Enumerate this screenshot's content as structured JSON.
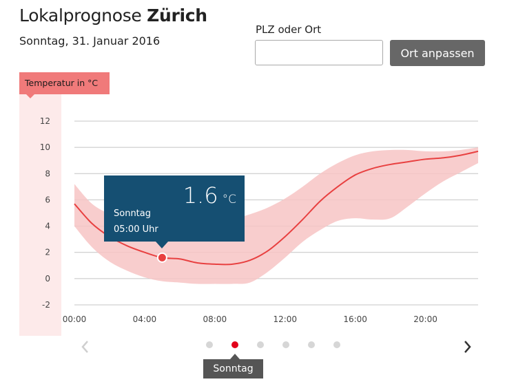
{
  "header": {
    "title_prefix": "Lokalprognose",
    "title_city": "Zürich",
    "date": "Sonntag, 31. Januar 2016"
  },
  "location": {
    "label": "PLZ oder Ort",
    "value": "",
    "button_label": "Ort anpassen"
  },
  "tooltip": {
    "value": "1.6",
    "unit": "°C",
    "day": "Sonntag",
    "time": "05:00 Uhr"
  },
  "pager": {
    "active_index": 1,
    "count": 6,
    "active_label": "Sonntag"
  },
  "colors": {
    "line": "#e84040",
    "band": "#f7c4c4",
    "tooltip": "#154f72",
    "active_dot": "#e2001a"
  },
  "chart_data": {
    "type": "line",
    "ylabel": "Temperatur in °C",
    "ylim": [
      -2,
      12
    ],
    "xlim": [
      0,
      23
    ],
    "y_ticks": [
      "12",
      "10",
      "8",
      "6",
      "4",
      "2",
      "0",
      "-2"
    ],
    "x_ticks": [
      "00:00",
      "04:00",
      "08:00",
      "12:00",
      "16:00",
      "20:00"
    ],
    "grid": true,
    "series": [
      {
        "type": "line",
        "x": [
          0,
          1,
          2,
          3,
          4,
          5,
          6,
          7,
          8,
          9,
          10,
          11,
          12,
          13,
          14,
          15,
          16,
          17,
          18,
          19,
          20,
          21,
          22,
          23
        ],
        "y": [
          5.7,
          4.2,
          3.2,
          2.5,
          2.0,
          1.6,
          1.5,
          1.2,
          1.1,
          1.1,
          1.4,
          2.1,
          3.2,
          4.5,
          5.9,
          7.0,
          7.9,
          8.4,
          8.7,
          8.9,
          9.1,
          9.2,
          9.4,
          9.7
        ]
      },
      {
        "type": "range",
        "x": [
          0,
          1,
          2,
          3,
          4,
          5,
          6,
          7,
          8,
          9,
          10,
          11,
          12,
          13,
          14,
          15,
          16,
          17,
          18,
          19,
          20,
          21,
          22,
          23
        ],
        "low": [
          4.0,
          2.4,
          1.3,
          0.6,
          0.1,
          -0.2,
          -0.3,
          -0.4,
          -0.4,
          -0.4,
          -0.3,
          0.5,
          1.6,
          2.8,
          3.7,
          4.4,
          4.6,
          4.5,
          4.6,
          5.5,
          6.5,
          7.4,
          8.1,
          8.8
        ],
        "high": [
          7.2,
          5.7,
          4.9,
          4.2,
          3.8,
          3.6,
          3.4,
          3.6,
          4.1,
          4.5,
          4.9,
          5.4,
          6.1,
          7.0,
          8.0,
          8.8,
          9.4,
          9.7,
          9.8,
          9.8,
          9.7,
          9.7,
          9.8,
          10.0
        ]
      }
    ],
    "highlight": {
      "x": 5,
      "y": 1.6
    }
  }
}
